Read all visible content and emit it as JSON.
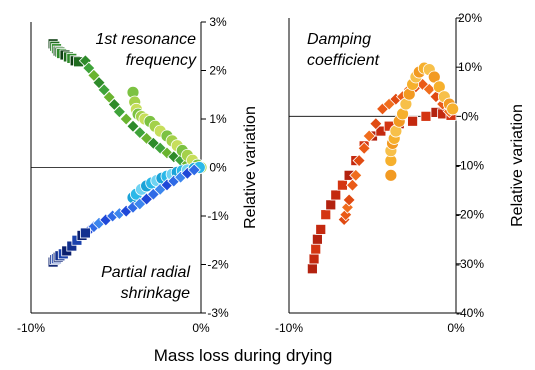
{
  "chart_data": [
    {
      "type": "scatter",
      "panel": "left",
      "xlim": [
        -10,
        0
      ],
      "ylim": [
        -3,
        3
      ],
      "x_ticks": [
        "-10%",
        "0%"
      ],
      "y_ticks": [
        "3%",
        "2%",
        "1%",
        "0%",
        "-1%",
        "-2%",
        "-3%"
      ],
      "ylabel": "Relative variation",
      "annotation_top": [
        "1st resonance",
        "frequency"
      ],
      "annotation_bottom": [
        "Partial radial",
        "shrinkage"
      ],
      "zero_line": true,
      "series": [
        {
          "marker": "square",
          "colors": [
            "#0e3f12",
            "#1f6b1e",
            "#2e8b2a"
          ],
          "points": [
            [
              -8.7,
              2.55
            ],
            [
              -8.6,
              2.5
            ],
            [
              -8.5,
              2.45
            ],
            [
              -8.4,
              2.4
            ],
            [
              -8.3,
              2.38
            ],
            [
              -8.2,
              2.35
            ],
            [
              -8.0,
              2.32
            ],
            [
              -7.8,
              2.28
            ],
            [
              -7.6,
              2.25
            ],
            [
              -7.4,
              2.2
            ],
            [
              -7.2,
              2.18
            ]
          ]
        },
        {
          "marker": "diamond",
          "colors": [
            "#2e8b2a",
            "#3fa33a",
            "#6ab42f"
          ],
          "points": [
            [
              -6.8,
              2.2
            ],
            [
              -6.6,
              2.05
            ],
            [
              -6.3,
              1.9
            ],
            [
              -6.0,
              1.75
            ],
            [
              -5.7,
              1.6
            ],
            [
              -5.4,
              1.45
            ],
            [
              -5.1,
              1.3
            ],
            [
              -4.8,
              1.15
            ],
            [
              -4.4,
              1.0
            ],
            [
              -4.0,
              0.85
            ],
            [
              -3.6,
              0.72
            ],
            [
              -3.2,
              0.6
            ],
            [
              -2.8,
              0.5
            ],
            [
              -2.4,
              0.4
            ],
            [
              -2.0,
              0.3
            ],
            [
              -1.6,
              0.22
            ],
            [
              -1.2,
              0.15
            ],
            [
              -0.8,
              0.08
            ],
            [
              -0.5,
              0.03
            ]
          ]
        },
        {
          "marker": "circle",
          "colors": [
            "#7cc242",
            "#a4d14a",
            "#c7de5b"
          ],
          "points": [
            [
              -4.0,
              1.55
            ],
            [
              -3.9,
              1.35
            ],
            [
              -3.8,
              1.2
            ],
            [
              -3.7,
              1.1
            ],
            [
              -3.5,
              1.05
            ],
            [
              -3.3,
              1.0
            ],
            [
              -3.0,
              0.95
            ],
            [
              -2.7,
              0.85
            ],
            [
              -2.4,
              0.75
            ],
            [
              -2.0,
              0.65
            ],
            [
              -1.7,
              0.55
            ],
            [
              -1.4,
              0.45
            ],
            [
              -1.1,
              0.35
            ],
            [
              -0.8,
              0.25
            ],
            [
              -0.5,
              0.15
            ],
            [
              -0.2,
              0.05
            ],
            [
              0.0,
              0.0
            ]
          ]
        },
        {
          "marker": "circle",
          "colors": [
            "#1aa3d8",
            "#2bb8e8",
            "#6fd3f2"
          ],
          "points": [
            [
              -4.0,
              -0.62
            ],
            [
              -3.8,
              -0.55
            ],
            [
              -3.5,
              -0.45
            ],
            [
              -3.2,
              -0.38
            ],
            [
              -2.9,
              -0.32
            ],
            [
              -2.6,
              -0.27
            ],
            [
              -2.3,
              -0.22
            ],
            [
              -2.0,
              -0.18
            ],
            [
              -1.7,
              -0.14
            ],
            [
              -1.4,
              -0.1
            ],
            [
              -1.1,
              -0.07
            ],
            [
              -0.8,
              -0.05
            ],
            [
              -0.4,
              -0.02
            ],
            [
              -0.1,
              0.0
            ]
          ]
        },
        {
          "marker": "diamond",
          "colors": [
            "#1f48d8",
            "#2f6ae6",
            "#3c86ee"
          ],
          "points": [
            [
              -6.6,
              -1.3
            ],
            [
              -6.3,
              -1.22
            ],
            [
              -6.0,
              -1.15
            ],
            [
              -5.6,
              -1.08
            ],
            [
              -5.2,
              -1.0
            ],
            [
              -4.8,
              -0.95
            ],
            [
              -4.4,
              -0.9
            ],
            [
              -4.0,
              -0.82
            ],
            [
              -3.6,
              -0.75
            ],
            [
              -3.2,
              -0.65
            ],
            [
              -2.8,
              -0.55
            ],
            [
              -2.4,
              -0.45
            ],
            [
              -2.0,
              -0.36
            ],
            [
              -1.6,
              -0.28
            ],
            [
              -1.2,
              -0.2
            ],
            [
              -0.8,
              -0.12
            ],
            [
              -0.4,
              -0.05
            ]
          ]
        },
        {
          "marker": "square",
          "colors": [
            "#0a1f6e",
            "#12308f",
            "#1b42ad"
          ],
          "points": [
            [
              -8.7,
              -1.95
            ],
            [
              -8.6,
              -1.9
            ],
            [
              -8.5,
              -1.88
            ],
            [
              -8.4,
              -1.85
            ],
            [
              -8.3,
              -1.82
            ],
            [
              -8.1,
              -1.78
            ],
            [
              -7.9,
              -1.72
            ],
            [
              -7.6,
              -1.62
            ],
            [
              -7.3,
              -1.5
            ],
            [
              -7.0,
              -1.4
            ],
            [
              -6.8,
              -1.35
            ]
          ]
        }
      ]
    },
    {
      "type": "scatter",
      "panel": "right",
      "xlim": [
        -10,
        0
      ],
      "ylim": [
        -40,
        20
      ],
      "x_ticks": [
        "-10%",
        "0%"
      ],
      "y_ticks": [
        "20%",
        "10%",
        "0%",
        "-10%",
        "-20%",
        "-30%",
        "-40%"
      ],
      "ylabel": "Relative variation",
      "annotation_top": [
        "Damping",
        "coefficient"
      ],
      "zero_line": true,
      "series": [
        {
          "marker": "square",
          "colors": [
            "#b3220f",
            "#c4290f",
            "#d43512"
          ],
          "points": [
            [
              -8.6,
              -31
            ],
            [
              -8.5,
              -29
            ],
            [
              -8.4,
              -27
            ],
            [
              -8.3,
              -25
            ],
            [
              -8.1,
              -23
            ],
            [
              -7.8,
              -20
            ],
            [
              -7.5,
              -18
            ],
            [
              -7.2,
              -16
            ],
            [
              -6.8,
              -14
            ],
            [
              -6.4,
              -12
            ],
            [
              -6.0,
              -9
            ],
            [
              -5.5,
              -6
            ],
            [
              -5.0,
              -4
            ],
            [
              -4.5,
              -3
            ],
            [
              -4.0,
              -2
            ],
            [
              -3.4,
              -1.5
            ],
            [
              -2.6,
              -1
            ],
            [
              -1.8,
              0
            ],
            [
              -1.2,
              0.8
            ],
            [
              -0.8,
              0.5
            ],
            [
              -0.3,
              0.2
            ]
          ]
        },
        {
          "marker": "diamond",
          "colors": [
            "#e04a12",
            "#ea5a17",
            "#f06d1d"
          ],
          "points": [
            [
              -6.7,
              -21
            ],
            [
              -6.6,
              -20
            ],
            [
              -6.5,
              -18.5
            ],
            [
              -6.4,
              -17
            ],
            [
              -6.2,
              -14
            ],
            [
              -6.0,
              -12
            ],
            [
              -5.8,
              -9
            ],
            [
              -5.5,
              -6.5
            ],
            [
              -5.2,
              -4
            ],
            [
              -4.8,
              -1.5
            ],
            [
              -4.4,
              1.5
            ],
            [
              -4.0,
              2.5
            ],
            [
              -3.6,
              3.5
            ],
            [
              -3.2,
              4.0
            ],
            [
              -2.8,
              5.5
            ],
            [
              -2.4,
              6.0
            ],
            [
              -2.0,
              6.5
            ],
            [
              -1.6,
              5.5
            ],
            [
              -1.2,
              4.0
            ],
            [
              -0.8,
              2.5
            ],
            [
              -0.4,
              1.0
            ]
          ]
        },
        {
          "marker": "circle",
          "colors": [
            "#f29a22",
            "#f6b02d",
            "#f7c04a"
          ],
          "points": [
            [
              -3.9,
              -12
            ],
            [
              -3.9,
              -9
            ],
            [
              -3.9,
              -7
            ],
            [
              -3.8,
              -5.5
            ],
            [
              -3.7,
              -4.5
            ],
            [
              -3.6,
              -3
            ],
            [
              -3.4,
              -1
            ],
            [
              -3.2,
              0.5
            ],
            [
              -3.0,
              2.5
            ],
            [
              -2.8,
              4.5
            ],
            [
              -2.6,
              6.5
            ],
            [
              -2.4,
              8.0
            ],
            [
              -2.2,
              9.0
            ],
            [
              -1.9,
              9.8
            ],
            [
              -1.6,
              9.5
            ],
            [
              -1.3,
              8.0
            ],
            [
              -1.0,
              6.0
            ],
            [
              -0.7,
              4.0
            ],
            [
              -0.4,
              2.5
            ],
            [
              -0.2,
              1.5
            ]
          ]
        }
      ]
    }
  ],
  "xlabel": "Mass loss during drying"
}
